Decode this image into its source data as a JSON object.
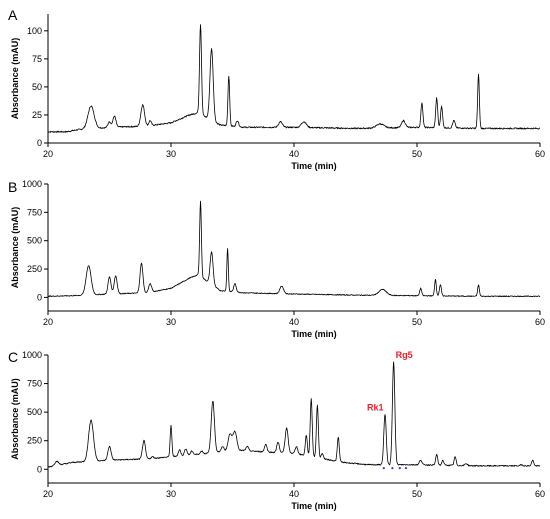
{
  "colors": {
    "annotation": "#e8212b",
    "marker": "#2a3fd6",
    "line": "#000000"
  },
  "chart_data": [
    {
      "type": "line",
      "panel": "A",
      "xlabel": "Time (min)",
      "ylabel": "Absorbance (mAU)",
      "xlim": [
        20,
        60
      ],
      "ylim": [
        0,
        115
      ],
      "xticks": [
        20,
        30,
        40,
        50,
        60
      ],
      "yticks": [
        0,
        25,
        50,
        75,
        100
      ],
      "baseline": [
        [
          20,
          10
        ],
        [
          21.5,
          10
        ],
        [
          22.5,
          12
        ],
        [
          25,
          14
        ],
        [
          28,
          15
        ],
        [
          30,
          18
        ],
        [
          31.5,
          25
        ],
        [
          32.2,
          27
        ],
        [
          34,
          16
        ],
        [
          36,
          14
        ],
        [
          40,
          14
        ],
        [
          45,
          13
        ],
        [
          50,
          14
        ],
        [
          55,
          13
        ],
        [
          60,
          13
        ]
      ],
      "peaks": [
        {
          "x": 23.5,
          "y": 33,
          "w": 0.25
        },
        {
          "x": 25.0,
          "y": 19,
          "w": 0.12
        },
        {
          "x": 25.4,
          "y": 24,
          "w": 0.12
        },
        {
          "x": 27.7,
          "y": 34,
          "w": 0.15
        },
        {
          "x": 28.3,
          "y": 20,
          "w": 0.1
        },
        {
          "x": 32.4,
          "y": 106,
          "w": 0.08
        },
        {
          "x": 33.3,
          "y": 84,
          "w": 0.13
        },
        {
          "x": 34.7,
          "y": 60,
          "w": 0.07
        },
        {
          "x": 35.4,
          "y": 20,
          "w": 0.1
        },
        {
          "x": 38.9,
          "y": 19,
          "w": 0.15
        },
        {
          "x": 40.8,
          "y": 19,
          "w": 0.2
        },
        {
          "x": 47.0,
          "y": 17,
          "w": 0.3
        },
        {
          "x": 48.9,
          "y": 20,
          "w": 0.15
        },
        {
          "x": 50.4,
          "y": 36,
          "w": 0.08
        },
        {
          "x": 51.6,
          "y": 40,
          "w": 0.08
        },
        {
          "x": 52.0,
          "y": 33,
          "w": 0.08
        },
        {
          "x": 53.0,
          "y": 20,
          "w": 0.1
        },
        {
          "x": 55.0,
          "y": 61,
          "w": 0.07
        }
      ],
      "noise": 1.2
    },
    {
      "type": "line",
      "panel": "B",
      "xlabel": "Time (min)",
      "ylabel": "Absorbance (mAU)",
      "xlim": [
        20,
        60
      ],
      "ylim": [
        -120,
        1000
      ],
      "xticks": [
        20,
        30,
        40,
        50,
        60
      ],
      "yticks": [
        0,
        250,
        500,
        750,
        1000
      ],
      "baseline": [
        [
          20,
          10
        ],
        [
          22,
          15
        ],
        [
          25,
          30
        ],
        [
          28,
          40
        ],
        [
          30,
          80
        ],
        [
          31.5,
          170
        ],
        [
          32.2,
          200
        ],
        [
          34,
          60
        ],
        [
          36,
          40
        ],
        [
          40,
          30
        ],
        [
          45,
          20
        ],
        [
          50,
          15
        ],
        [
          55,
          10
        ],
        [
          60,
          10
        ]
      ],
      "peaks": [
        {
          "x": 23.3,
          "y": 280,
          "w": 0.2
        },
        {
          "x": 25.0,
          "y": 180,
          "w": 0.12
        },
        {
          "x": 25.5,
          "y": 190,
          "w": 0.12
        },
        {
          "x": 27.6,
          "y": 300,
          "w": 0.12
        },
        {
          "x": 28.3,
          "y": 120,
          "w": 0.12
        },
        {
          "x": 32.4,
          "y": 850,
          "w": 0.07
        },
        {
          "x": 33.3,
          "y": 400,
          "w": 0.12
        },
        {
          "x": 34.6,
          "y": 430,
          "w": 0.06
        },
        {
          "x": 35.2,
          "y": 120,
          "w": 0.1
        },
        {
          "x": 39.0,
          "y": 100,
          "w": 0.15
        },
        {
          "x": 47.2,
          "y": 70,
          "w": 0.3
        },
        {
          "x": 50.3,
          "y": 80,
          "w": 0.08
        },
        {
          "x": 51.5,
          "y": 160,
          "w": 0.07
        },
        {
          "x": 51.9,
          "y": 110,
          "w": 0.08
        },
        {
          "x": 55.0,
          "y": 110,
          "w": 0.07
        }
      ],
      "noise": 8
    },
    {
      "type": "line",
      "panel": "C",
      "xlabel": "Time (min)",
      "ylabel": "Absorbance (mAU)",
      "xlim": [
        20,
        60
      ],
      "ylim": [
        -120,
        1000
      ],
      "xticks": [
        20,
        30,
        40,
        50,
        60
      ],
      "yticks": [
        0,
        250,
        500,
        750,
        1000
      ],
      "baseline": [
        [
          20,
          20
        ],
        [
          22,
          60
        ],
        [
          25,
          80
        ],
        [
          28,
          90
        ],
        [
          30,
          110
        ],
        [
          33,
          140
        ],
        [
          35,
          170
        ],
        [
          38,
          150
        ],
        [
          40,
          140
        ],
        [
          42,
          100
        ],
        [
          44,
          60
        ],
        [
          46,
          40
        ],
        [
          50,
          40
        ],
        [
          55,
          30
        ],
        [
          60,
          30
        ]
      ],
      "peaks": [
        {
          "x": 20.7,
          "y": 70,
          "w": 0.15
        },
        {
          "x": 23.5,
          "y": 430,
          "w": 0.2
        },
        {
          "x": 25.0,
          "y": 200,
          "w": 0.13
        },
        {
          "x": 27.8,
          "y": 250,
          "w": 0.12
        },
        {
          "x": 28.5,
          "y": 110,
          "w": 0.1
        },
        {
          "x": 30.0,
          "y": 380,
          "w": 0.07
        },
        {
          "x": 30.7,
          "y": 170,
          "w": 0.1
        },
        {
          "x": 31.2,
          "y": 180,
          "w": 0.1
        },
        {
          "x": 31.7,
          "y": 160,
          "w": 0.1
        },
        {
          "x": 32.5,
          "y": 160,
          "w": 0.1
        },
        {
          "x": 33.4,
          "y": 600,
          "w": 0.13
        },
        {
          "x": 34.2,
          "y": 200,
          "w": 0.1
        },
        {
          "x": 34.8,
          "y": 310,
          "w": 0.15
        },
        {
          "x": 35.2,
          "y": 330,
          "w": 0.15
        },
        {
          "x": 36.2,
          "y": 200,
          "w": 0.1
        },
        {
          "x": 37.7,
          "y": 220,
          "w": 0.1
        },
        {
          "x": 38.7,
          "y": 240,
          "w": 0.1
        },
        {
          "x": 39.4,
          "y": 360,
          "w": 0.12
        },
        {
          "x": 40.2,
          "y": 200,
          "w": 0.1
        },
        {
          "x": 41.0,
          "y": 300,
          "w": 0.08
        },
        {
          "x": 41.4,
          "y": 620,
          "w": 0.08
        },
        {
          "x": 41.9,
          "y": 560,
          "w": 0.08
        },
        {
          "x": 42.3,
          "y": 140,
          "w": 0.08
        },
        {
          "x": 43.6,
          "y": 280,
          "w": 0.08
        },
        {
          "x": 47.4,
          "y": 480,
          "w": 0.1
        },
        {
          "x": 48.1,
          "y": 940,
          "w": 0.1
        },
        {
          "x": 50.3,
          "y": 80,
          "w": 0.1
        },
        {
          "x": 51.6,
          "y": 130,
          "w": 0.08
        },
        {
          "x": 52.1,
          "y": 80,
          "w": 0.08
        },
        {
          "x": 53.1,
          "y": 110,
          "w": 0.08
        },
        {
          "x": 54.0,
          "y": 50,
          "w": 0.1
        },
        {
          "x": 58.5,
          "y": 40,
          "w": 0.1
        },
        {
          "x": 59.4,
          "y": 80,
          "w": 0.08
        }
      ],
      "noise": 10,
      "annotations": [
        {
          "text": "Rk1",
          "x": 47.4,
          "y": 480
        },
        {
          "text": "Rg5",
          "x": 48.1,
          "y": 940
        }
      ],
      "markers": [
        {
          "x": 47.3,
          "y": 10
        },
        {
          "x": 48.0,
          "y": 10
        },
        {
          "x": 48.6,
          "y": 10
        },
        {
          "x": 49.1,
          "y": 10
        }
      ]
    }
  ]
}
